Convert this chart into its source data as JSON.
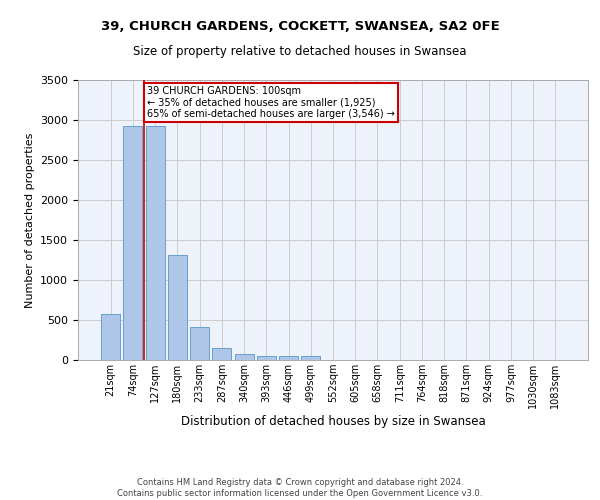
{
  "title_line1": "39, CHURCH GARDENS, COCKETT, SWANSEA, SA2 0FE",
  "title_line2": "Size of property relative to detached houses in Swansea",
  "xlabel": "Distribution of detached houses by size in Swansea",
  "ylabel": "Number of detached properties",
  "footer_line1": "Contains HM Land Registry data © Crown copyright and database right 2024.",
  "footer_line2": "Contains public sector information licensed under the Open Government Licence v3.0.",
  "categories": [
    "21sqm",
    "74sqm",
    "127sqm",
    "180sqm",
    "233sqm",
    "287sqm",
    "340sqm",
    "393sqm",
    "446sqm",
    "499sqm",
    "552sqm",
    "605sqm",
    "658sqm",
    "711sqm",
    "764sqm",
    "818sqm",
    "871sqm",
    "924sqm",
    "977sqm",
    "1030sqm",
    "1083sqm"
  ],
  "values": [
    570,
    2920,
    2920,
    1310,
    410,
    155,
    80,
    55,
    50,
    45,
    0,
    0,
    0,
    0,
    0,
    0,
    0,
    0,
    0,
    0,
    0
  ],
  "bar_color": "#aec6e8",
  "bar_edge_color": "#5a96c8",
  "grid_color": "#cccccc",
  "background_color": "#eef2fa",
  "annotation_box_color": "#cc0000",
  "annotation_line_color": "#cc0000",
  "annotation_text_line1": "39 CHURCH GARDENS: 100sqm",
  "annotation_text_line2": "← 35% of detached houses are smaller (1,925)",
  "annotation_text_line3": "65% of semi-detached houses are larger (3,546) →",
  "ylim": [
    0,
    3500
  ],
  "yticks": [
    0,
    500,
    1000,
    1500,
    2000,
    2500,
    3000,
    3500
  ]
}
